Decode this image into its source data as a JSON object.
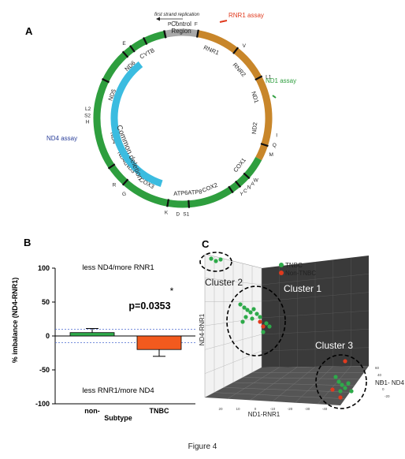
{
  "figure_caption": "Figure 4",
  "panelA": {
    "label": "A",
    "control_region": "Control\nRegion",
    "first_strand": "first strand replication",
    "rnr1_assay": "RNR1 assay",
    "nd1_assay": "ND1 assay",
    "nd4_assay": "ND4 assay",
    "common_deletion": "Common deletion",
    "genes": [
      "CYTB",
      "ND6",
      "ND5",
      "ND4",
      "ND4L",
      "ND3",
      "COX3",
      "ATP6ATP8",
      "COX2",
      "COX1",
      "ND2",
      "ND1",
      "RNR2",
      "RNR1"
    ],
    "trnas": [
      "P",
      "T",
      "F",
      "V",
      "L1",
      "I",
      "Q",
      "M",
      "W",
      "A",
      "N",
      "C",
      "Y",
      "S1",
      "D",
      "K",
      "G",
      "R",
      "H",
      "S2",
      "L2",
      "E"
    ],
    "colors": {
      "protein": "#2e9e3e",
      "rrna": "#c8862a",
      "control": "#a8a8a8",
      "deletion": "#3bbce0",
      "rnr1_assay": "#e03a1e",
      "nd1_assay": "#2e9e3e",
      "nd4_assay": "#2a3f9a"
    }
  },
  "panelB": {
    "label": "B",
    "ylabel": "% imbalance (ND4-RNR1)",
    "xlabel": "Subtype",
    "top_annotation": "less ND4/more RNR1",
    "bottom_annotation": "less RNR1/more ND4",
    "star": "*",
    "pvalue": "p=0.0353"
  },
  "panelC": {
    "label": "C",
    "legend": [
      {
        "name": "TNBC",
        "color": "#2eaa4a"
      },
      {
        "name": "Non-TNBC",
        "color": "#e03a1e"
      }
    ],
    "clusters": [
      "Cluster 1",
      "Cluster 2",
      "Cluster 3"
    ],
    "x_axis": "ND1-RNR1",
    "y_axis": "ND4-RNR1",
    "z_axis": "ND1- ND4",
    "x_ticks": [
      "20",
      "10",
      "0",
      "-10",
      "-20",
      "-30",
      "-40"
    ],
    "y_ticks": [
      "20",
      "10",
      "0",
      "-10",
      "-20",
      "-30",
      "-40"
    ],
    "z_ticks": [
      "60",
      "40",
      "20",
      "0",
      "-20"
    ]
  },
  "chart_data": {
    "type": "bar",
    "categories": [
      "non-",
      "TNBC"
    ],
    "values": [
      5,
      -20
    ],
    "errors": [
      6,
      10
    ],
    "colors": [
      "#2eaa4a",
      "#f25a1e"
    ],
    "title": "",
    "xlabel": "Subtype",
    "ylabel": "% imbalance (ND4-RNR1)",
    "ylim": [
      -100,
      100
    ],
    "yticks": [
      -100,
      -50,
      0,
      50,
      100
    ],
    "reference_lines": [
      10,
      -10
    ]
  }
}
